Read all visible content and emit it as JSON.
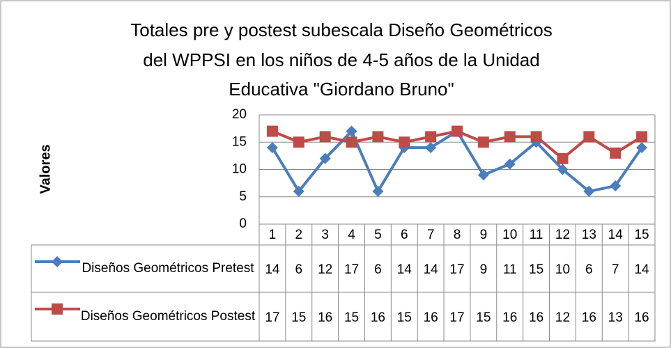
{
  "chart_data": {
    "type": "line",
    "title": [
      "Totales pre y postest subescala Diseño Geométricos",
      "del WPPSI en los niños de 4-5 años de la Unidad",
      "Educativa \"Giordano Bruno\""
    ],
    "y_label": "Valores",
    "categories": [
      "1",
      "2",
      "3",
      "4",
      "5",
      "6",
      "7",
      "8",
      "9",
      "10",
      "11",
      "12",
      "13",
      "14",
      "15"
    ],
    "series": [
      {
        "name": "Diseños Geométricos Pretest",
        "color": "#4a7ebb",
        "marker": "diamond",
        "values": [
          14,
          6,
          12,
          17,
          6,
          14,
          14,
          17,
          9,
          11,
          15,
          10,
          6,
          7,
          14
        ]
      },
      {
        "name": "Diseños Geométricos Postest",
        "color": "#be4b48",
        "marker": "square",
        "values": [
          17,
          15,
          16,
          15,
          16,
          15,
          16,
          17,
          15,
          16,
          16,
          12,
          16,
          13,
          16
        ]
      }
    ],
    "ylim": [
      0,
      20
    ],
    "yticks": [
      0,
      5,
      10,
      15,
      20
    ],
    "grid": true,
    "data_table": true
  }
}
